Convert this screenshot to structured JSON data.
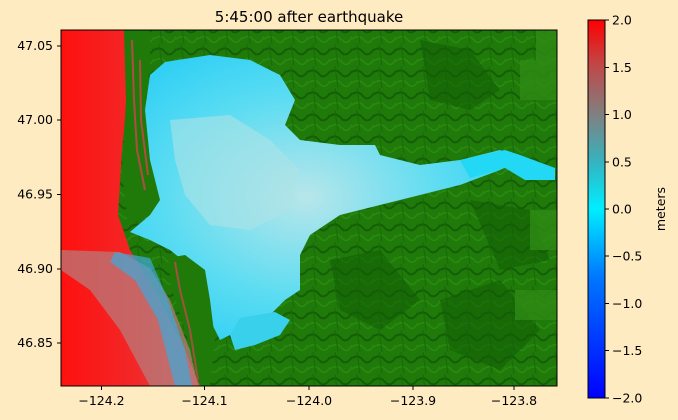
{
  "title": "5:45:00 after earthquake",
  "x_axis": {
    "min": -124.24,
    "max": -123.75,
    "ticks": [
      -124.2,
      -124.1,
      -124.0,
      -123.9,
      -123.8
    ],
    "tick_labels": [
      "−124.2",
      "−124.1",
      "−124.0",
      "−123.9",
      "−123.8"
    ]
  },
  "y_axis": {
    "min": 46.82,
    "max": 47.06,
    "ticks": [
      46.85,
      46.9,
      46.95,
      47.0,
      47.05
    ],
    "tick_labels": [
      "46.85",
      "46.90",
      "46.95",
      "47.00",
      "47.05"
    ]
  },
  "colorbar": {
    "label": "meters",
    "min": -2.0,
    "max": 2.0,
    "ticks": [
      -2.0,
      -1.5,
      -1.0,
      -0.5,
      0.0,
      0.5,
      1.0,
      1.5,
      2.0
    ],
    "tick_labels": [
      "−2.0",
      "−1.5",
      "−1.0",
      "−0.5",
      "0.0",
      "0.5",
      "1.0",
      "1.5",
      "2.0"
    ],
    "colors": [
      "#0000FF",
      "#00EEFF",
      "#808080",
      "#FF0000"
    ]
  },
  "colors": {
    "figure_background": "#FFEBC2",
    "land": "#1F7A0A",
    "land_dark": "#0F5205",
    "ocean_high": "#FF1A1A",
    "ocean_mid": "#CC4040",
    "bay_water": "#33D6F5",
    "bay_water_light": "#A8E8F0"
  }
}
